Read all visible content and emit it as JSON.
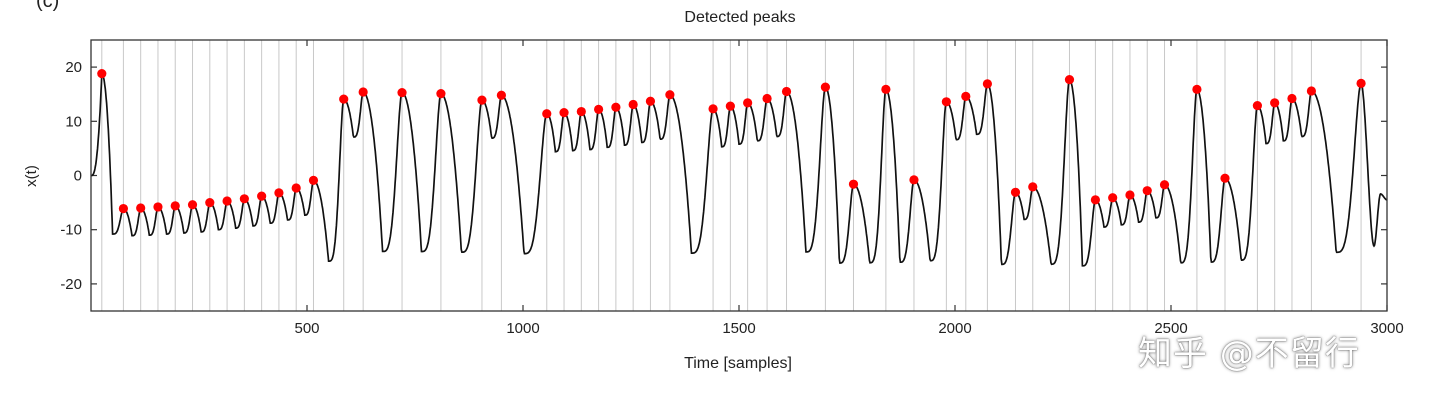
{
  "panel_label": "(c)",
  "watermark": "知乎 @不留行",
  "chart_data": {
    "type": "line",
    "title": "Detected peaks",
    "xlabel": "Time [samples]",
    "ylabel": "x(t)",
    "xlim": [
      0,
      3000
    ],
    "ylim": [
      -25,
      25
    ],
    "xticks": [
      500,
      1000,
      1500,
      2000,
      2500,
      3000
    ],
    "yticks": [
      20,
      10,
      0,
      -10,
      -20
    ],
    "colors": {
      "signal": "#111111",
      "peak": "#ff0000",
      "vline": "#c8c8c8",
      "axis": "#333333"
    },
    "series": [
      {
        "name": "signal",
        "style": "line"
      },
      {
        "name": "detected peaks",
        "style": "marker"
      }
    ],
    "peaks": {
      "x": [
        25,
        75,
        115,
        155,
        195,
        235,
        275,
        315,
        355,
        395,
        435,
        475,
        515,
        585,
        630,
        720,
        810,
        905,
        950,
        1055,
        1095,
        1135,
        1175,
        1215,
        1255,
        1295,
        1340,
        1440,
        1480,
        1520,
        1565,
        1610,
        1700,
        1765,
        1840,
        1905,
        1980,
        2025,
        2075,
        2140,
        2180,
        2265,
        2325,
        2365,
        2405,
        2445,
        2485,
        2560,
        2625,
        2700,
        2740,
        2780,
        2825,
        2940
      ],
      "y": [
        18.8,
        -6.1,
        -6.0,
        -5.8,
        -5.6,
        -5.4,
        -5.0,
        -4.7,
        -4.3,
        -3.8,
        -3.2,
        -2.3,
        -0.9,
        14.1,
        15.4,
        15.3,
        15.1,
        13.9,
        14.8,
        11.4,
        11.6,
        11.8,
        12.2,
        12.6,
        13.1,
        13.7,
        14.9,
        12.3,
        12.8,
        13.4,
        14.2,
        15.5,
        16.3,
        -1.6,
        15.9,
        -0.8,
        13.6,
        14.6,
        16.9,
        -3.1,
        -2.1,
        17.7,
        -4.5,
        -4.1,
        -3.6,
        -2.8,
        -1.7,
        15.9,
        -0.5,
        12.9,
        13.4,
        14.2,
        15.6,
        17.0
      ]
    },
    "signal_end": {
      "x": [
        2970,
        2985,
        3000
      ],
      "y": [
        -13.0,
        -3.4,
        -4.5
      ]
    }
  }
}
